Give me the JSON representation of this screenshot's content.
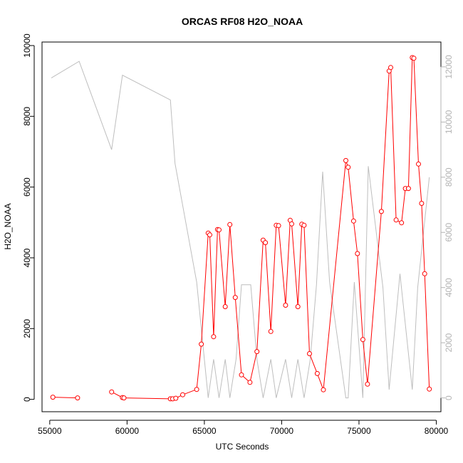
{
  "chart_data": {
    "type": "line",
    "title": "ORCAS RF08 H2O_NOAA",
    "xlabel": "UTC Seconds",
    "ylabel": "H2O_NOAA",
    "xlim": [
      54500,
      80300
    ],
    "ylim": [
      -350,
      10100
    ],
    "y2lim": [
      -500,
      12900
    ],
    "x_ticks": [
      55000,
      60000,
      65000,
      70000,
      75000,
      80000
    ],
    "x_tick_labels": [
      "55000",
      "60000",
      "65000",
      "70000",
      "75000",
      "80000"
    ],
    "y_ticks": [
      0,
      2000,
      4000,
      6000,
      8000,
      10000
    ],
    "y_tick_labels": [
      "0",
      "2000",
      "4000",
      "6000",
      "8000",
      "10000"
    ],
    "y2_ticks": [
      0,
      2000,
      4000,
      6000,
      8000,
      10000,
      12000
    ],
    "y2_tick_labels": [
      "0",
      "2000",
      "4000",
      "6000",
      "8000",
      "10000",
      "12000"
    ],
    "grid": false,
    "colors": {
      "h2o": "#ff0000",
      "altitude": "#bebebe",
      "right_axis": "#b3b3b3"
    },
    "series": [
      {
        "axis": "left",
        "style": "line+points",
        "segments": [
          [
            [
              55200,
              60
            ],
            [
              56800,
              40
            ]
          ],
          [
            [
              59000,
              210
            ],
            [
              59700,
              50
            ],
            [
              59800,
              40
            ],
            [
              62800,
              15
            ],
            [
              62950,
              15
            ],
            [
              63150,
              30
            ],
            [
              63600,
              130
            ],
            [
              64500,
              280
            ],
            [
              64800,
              1560
            ],
            [
              65250,
              4700
            ],
            [
              65350,
              4650
            ],
            [
              65600,
              1770
            ],
            [
              65850,
              4800
            ],
            [
              65950,
              4790
            ],
            [
              66350,
              2620
            ],
            [
              66650,
              4940
            ],
            [
              67000,
              2880
            ],
            [
              67400,
              690
            ],
            [
              67950,
              480
            ],
            [
              68400,
              1350
            ],
            [
              68800,
              4500
            ],
            [
              68950,
              4430
            ],
            [
              69300,
              1920
            ],
            [
              69650,
              4920
            ],
            [
              69800,
              4910
            ],
            [
              70250,
              2660
            ],
            [
              70550,
              5060
            ],
            [
              70650,
              4960
            ],
            [
              71050,
              2620
            ],
            [
              71300,
              4950
            ],
            [
              71450,
              4920
            ],
            [
              71800,
              1290
            ],
            [
              72300,
              730
            ],
            [
              72700,
              270
            ],
            [
              74150,
              6750
            ],
            [
              74300,
              6560
            ],
            [
              74650,
              5040
            ],
            [
              74900,
              4120
            ],
            [
              75250,
              1690
            ],
            [
              75550,
              430
            ],
            [
              76450,
              5310
            ],
            [
              76950,
              9280
            ],
            [
              77050,
              9380
            ],
            [
              77400,
              5070
            ],
            [
              77750,
              4990
            ],
            [
              78000,
              5960
            ],
            [
              78200,
              5960
            ],
            [
              78450,
              9660
            ],
            [
              78550,
              9640
            ],
            [
              78850,
              6650
            ],
            [
              79050,
              5540
            ],
            [
              79250,
              3550
            ],
            [
              79550,
              290
            ]
          ]
        ]
      },
      {
        "axis": "right",
        "style": "line",
        "x": [
          55100,
          56900,
          59000,
          59700,
          62800,
          63100,
          64500,
          65250,
          65600,
          65950,
          66350,
          66650,
          67050,
          67400,
          68000,
          68400,
          68800,
          69300,
          69650,
          70250,
          70650,
          71050,
          71450,
          71850,
          72250,
          72650,
          73100,
          74150,
          74300,
          74700,
          75250,
          75600,
          76550,
          76950,
          77650,
          78450,
          78800,
          79550
        ],
        "values": [
          11600,
          12200,
          9000,
          11700,
          10800,
          8500,
          4200,
          0,
          1400,
          0,
          1400,
          0,
          1400,
          4100,
          4100,
          1400,
          0,
          1400,
          0,
          1400,
          0,
          1400,
          0,
          1400,
          4100,
          8200,
          4200,
          0,
          0,
          4200,
          0,
          8400,
          4000,
          300,
          4500,
          300,
          4000,
          8000
        ]
      }
    ]
  }
}
